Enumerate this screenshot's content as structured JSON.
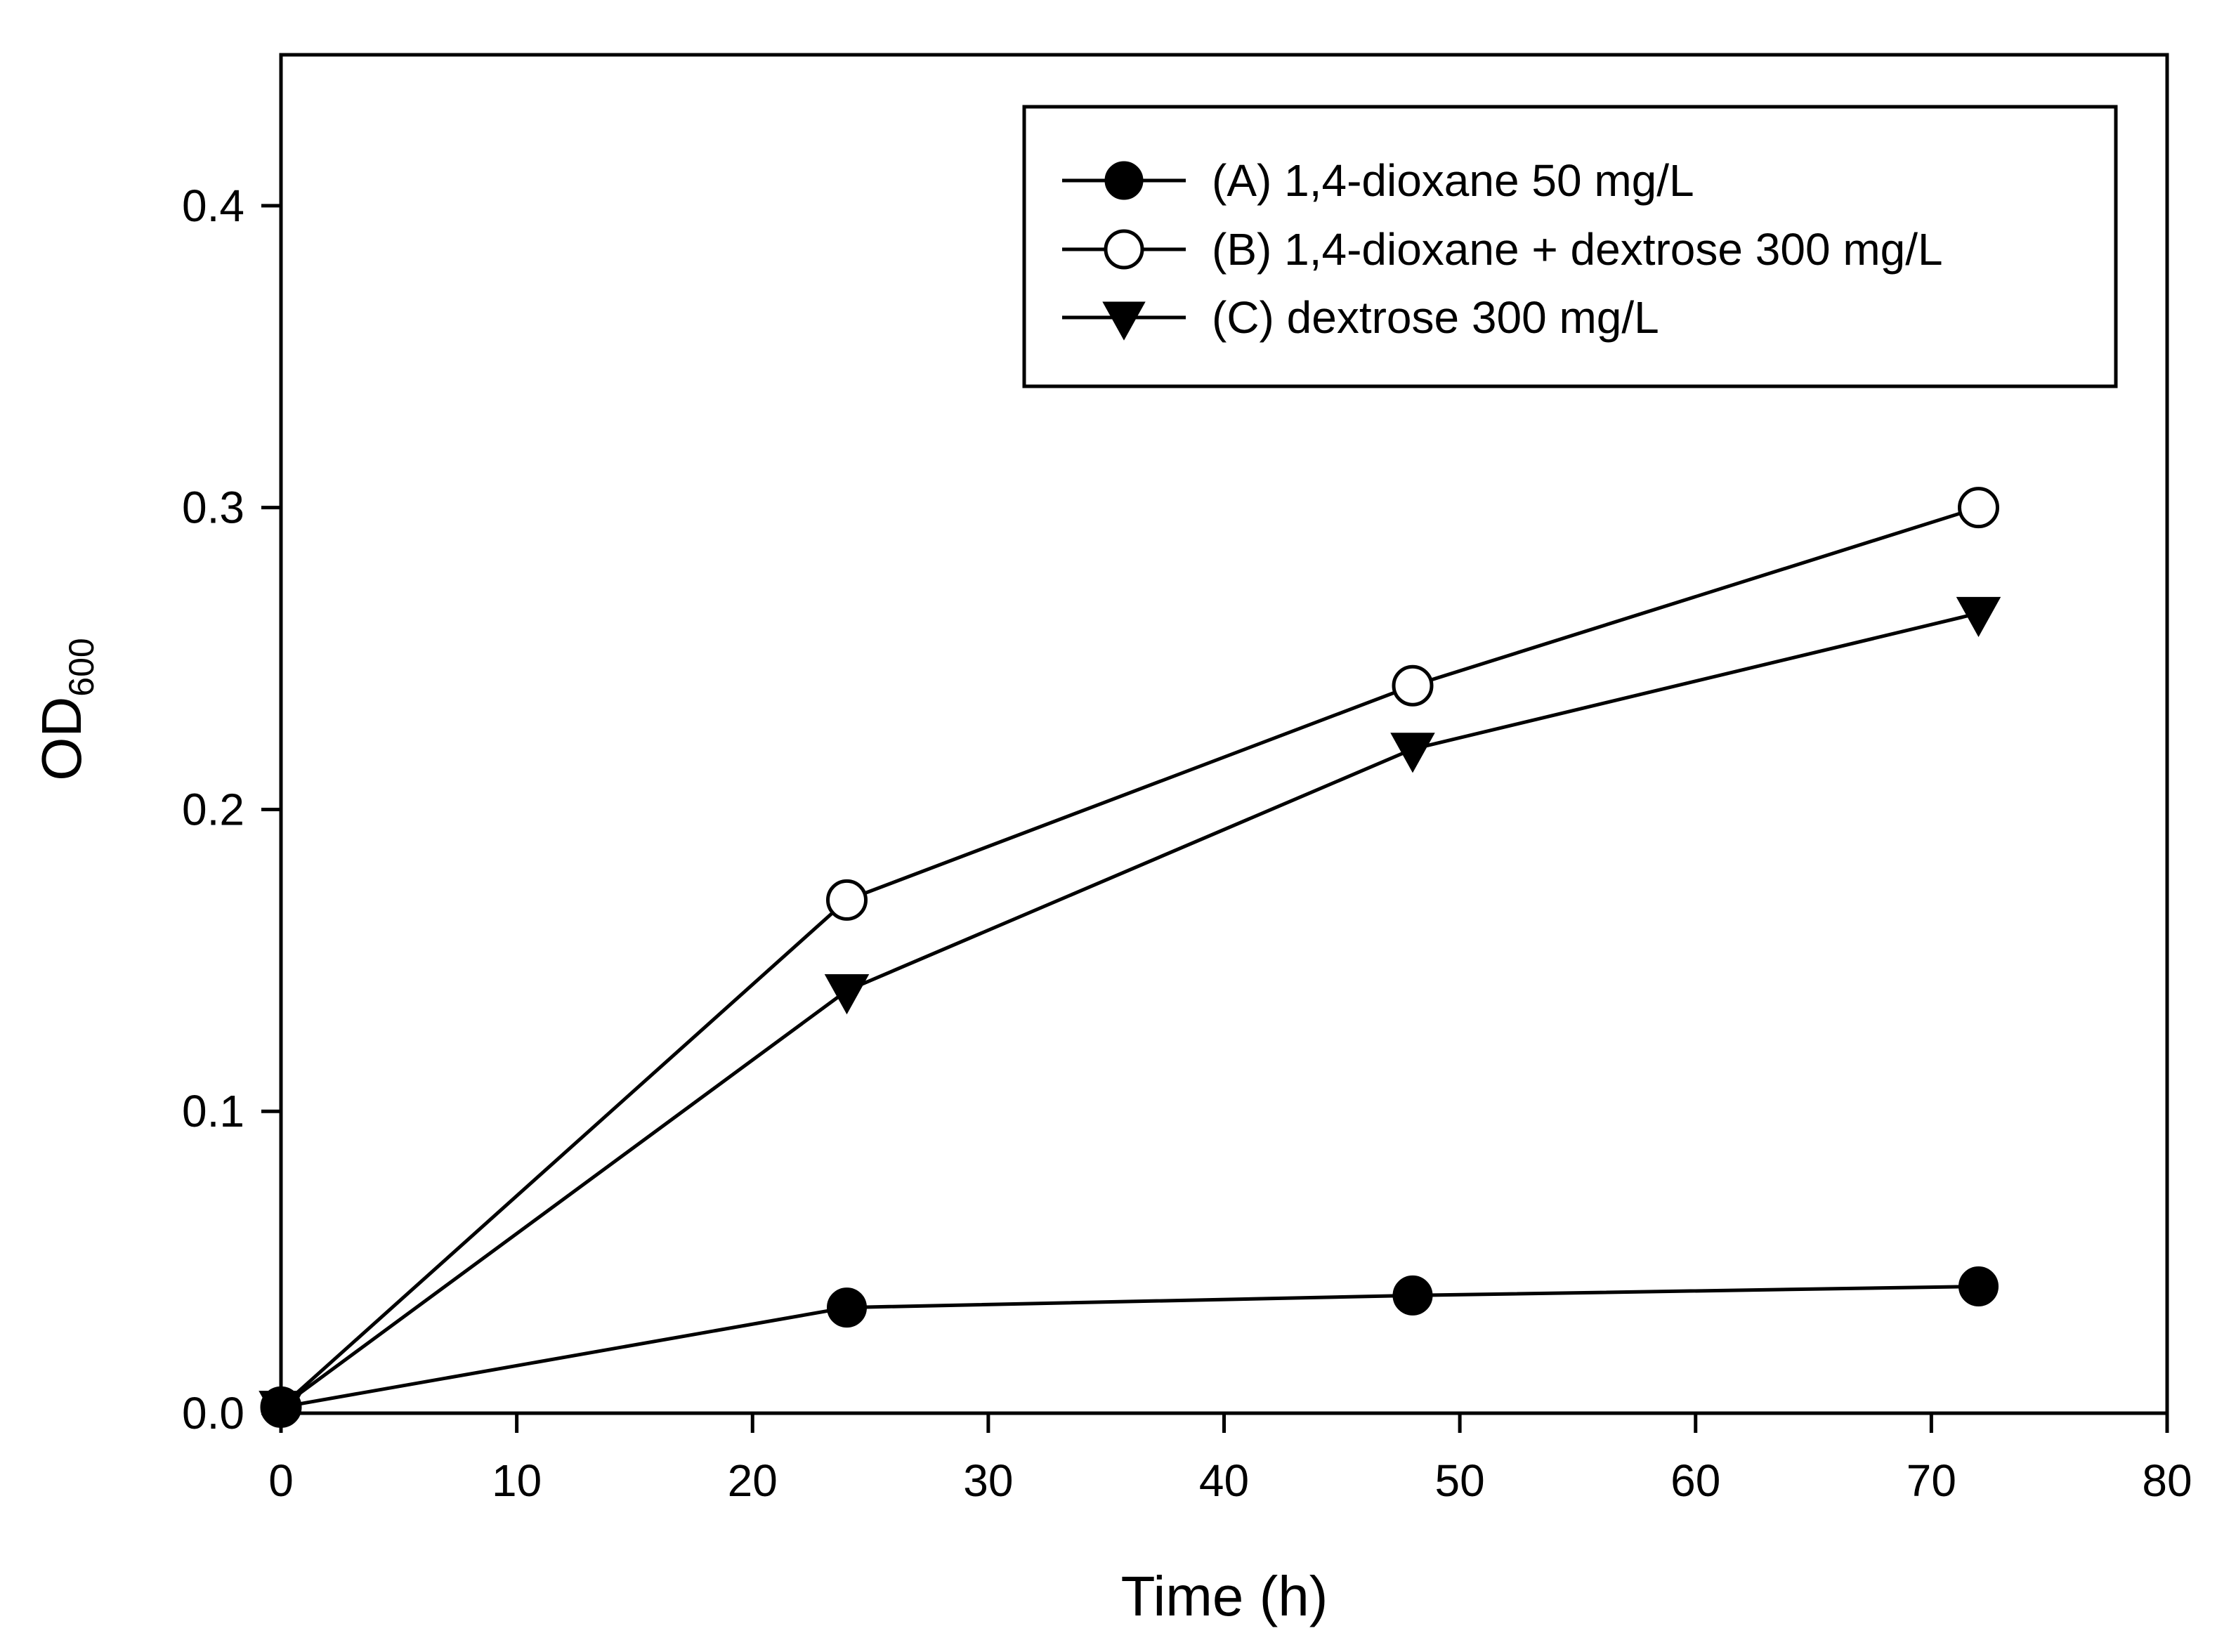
{
  "chart_data": {
    "type": "line",
    "title": "",
    "xlabel": "Time (h)",
    "ylabel_main": "OD",
    "ylabel_sub": "600",
    "xlim": [
      0,
      80
    ],
    "ylim": [
      0,
      0.45
    ],
    "xticks": [
      0,
      10,
      20,
      30,
      40,
      50,
      60,
      70,
      80
    ],
    "xtick_labels": [
      "0",
      "10",
      "20",
      "30",
      "40",
      "50",
      "60",
      "70",
      "80"
    ],
    "yticks": [
      0.0,
      0.1,
      0.2,
      0.3,
      0.4
    ],
    "ytick_labels": [
      "0.0",
      "0.1",
      "0.2",
      "0.3",
      "0.4"
    ],
    "grid": false,
    "legend_position": "top-right",
    "x": [
      0,
      24,
      48,
      72
    ],
    "series": [
      {
        "name": "(A) 1,4-dioxane 50 mg/L",
        "marker": "filled-circle",
        "color": "#000000",
        "values": [
          0.002,
          0.035,
          0.039,
          0.042
        ]
      },
      {
        "name": "(B) 1,4-dioxane + dextrose 300 mg/L",
        "marker": "open-circle",
        "color": "#000000",
        "values": [
          0.002,
          0.17,
          0.241,
          0.3
        ]
      },
      {
        "name": "(C) dextrose 300 mg/L",
        "marker": "filled-triangle-down",
        "color": "#000000",
        "values": [
          0.002,
          0.14,
          0.22,
          0.265
        ]
      }
    ]
  }
}
